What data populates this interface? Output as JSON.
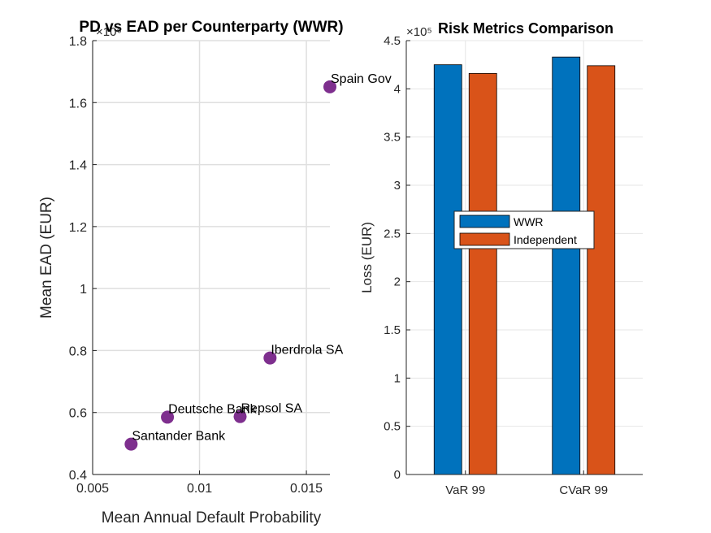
{
  "chart_data": [
    {
      "type": "scatter",
      "title": "PD vs EAD per Counterparty (WWR)",
      "xlabel": "Mean Annual Default Probability",
      "ylabel": "Mean EAD (EUR)",
      "y_exponent_label": "×10⁶",
      "xlim": [
        0.005,
        0.0161
      ],
      "ylim": [
        0.4,
        1.8
      ],
      "xticks": [
        0.005,
        0.01,
        0.015
      ],
      "xtick_labels": [
        "0.005",
        "0.01",
        "0.015"
      ],
      "yticks": [
        0.4,
        0.6,
        0.8,
        1.0,
        1.2,
        1.4,
        1.6,
        1.8
      ],
      "ytick_labels": [
        "0.4",
        "0.6",
        "0.8",
        "1",
        "1.2",
        "1.4",
        "1.6",
        "1.8"
      ],
      "grid": true,
      "marker_color": "#7E2F8E",
      "points": [
        {
          "label": "Santander Bank",
          "x": 0.0068,
          "y": 0.498
        },
        {
          "label": "Deutsche Bank",
          "x": 0.0085,
          "y": 0.585
        },
        {
          "label": "Repsol SA",
          "x": 0.0119,
          "y": 0.587
        },
        {
          "label": "Iberdrola SA",
          "x": 0.0133,
          "y": 0.776
        },
        {
          "label": "Spain Gov",
          "x": 0.0161,
          "y": 1.651
        }
      ]
    },
    {
      "type": "bar",
      "title": "Risk Metrics Comparison",
      "xlabel": "",
      "ylabel": "Loss (EUR)",
      "y_exponent_label": "×10⁵",
      "ylim": [
        0,
        4.5
      ],
      "yticks": [
        0,
        0.5,
        1,
        1.5,
        2,
        2.5,
        3,
        3.5,
        4,
        4.5
      ],
      "ytick_labels": [
        "0",
        "0.5",
        "1",
        "1.5",
        "2",
        "2.5",
        "3",
        "3.5",
        "4",
        "4.5"
      ],
      "grid": true,
      "categories": [
        "VaR 99",
        "CVaR 99"
      ],
      "series": [
        {
          "name": "WWR",
          "values": [
            4.25,
            4.33
          ],
          "color": "#0072BD"
        },
        {
          "name": "Independent",
          "values": [
            4.16,
            4.24
          ],
          "color": "#D95319"
        }
      ],
      "legend_position": "center-left"
    }
  ]
}
